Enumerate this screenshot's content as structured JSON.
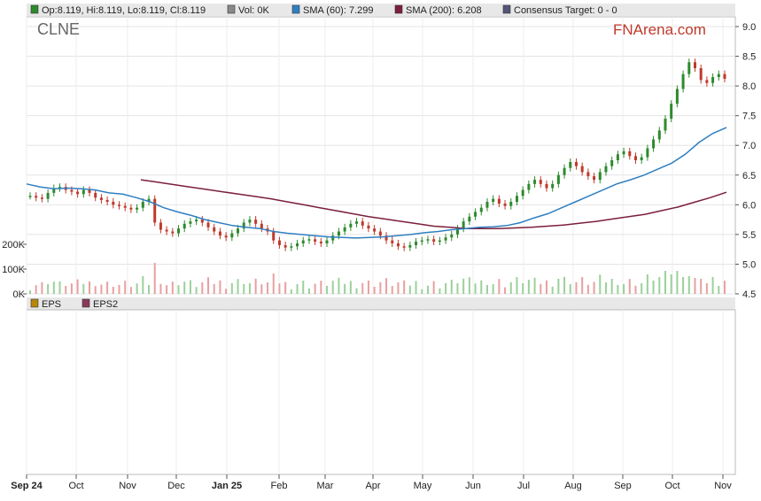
{
  "legend_top": {
    "ohlc": {
      "label": "Op:8.119, Hi:8.119, Lo:8.119, Cl:8.119",
      "color": "#2d8a2d"
    },
    "vol": {
      "label": "Vol: 0K",
      "color": "#888888"
    },
    "sma60": {
      "label": "SMA (60): 7.299",
      "color": "#2f7fc1"
    },
    "sma200": {
      "label": "SMA (200): 6.208",
      "color": "#7b1f3a"
    },
    "consensus": {
      "label": "Consensus Target: 0 - 0",
      "color": "#555577"
    }
  },
  "legend_bottom": {
    "eps": {
      "label": "EPS",
      "color": "#b8860b"
    },
    "eps2": {
      "label": "EPS2",
      "color": "#8b3a5a"
    }
  },
  "ticker": "CLNE",
  "brand": "FNArena.com",
  "chart_data": {
    "type": "line",
    "title": "CLNE",
    "y_ticks": [
      "4.5",
      "5.0",
      "5.5",
      "6.0",
      "6.5",
      "7.0",
      "7.5",
      "8.0",
      "8.5",
      "9.0"
    ],
    "ylim": [
      4.5,
      9.1
    ],
    "volume_ticks": [
      "0K",
      "100K",
      "200K"
    ],
    "x_ticks": [
      "Sep 24",
      "Oct",
      "Nov",
      "Dec",
      "Jan 25",
      "Feb",
      "Mar",
      "Apr",
      "May",
      "Jun",
      "Jul",
      "Aug",
      "Sep",
      "Oct",
      "Nov"
    ],
    "x_ticks_bold": [
      true,
      false,
      false,
      false,
      true,
      false,
      false,
      false,
      false,
      false,
      false,
      false,
      false,
      false,
      false
    ],
    "close_series": {
      "name": "CLNE",
      "color_up": "#2d8a2d",
      "color_down": "#c0392b",
      "values": [
        6.15,
        6.12,
        6.1,
        6.2,
        6.28,
        6.3,
        6.25,
        6.22,
        6.18,
        6.25,
        6.2,
        6.12,
        6.08,
        6.05,
        6.0,
        5.98,
        5.95,
        5.92,
        5.95,
        6.05,
        6.1,
        5.7,
        5.58,
        5.55,
        5.52,
        5.6,
        5.68,
        5.72,
        5.75,
        5.7,
        5.62,
        5.55,
        5.48,
        5.45,
        5.52,
        5.6,
        5.7,
        5.75,
        5.68,
        5.6,
        5.55,
        5.4,
        5.32,
        5.28,
        5.3,
        5.35,
        5.4,
        5.42,
        5.38,
        5.35,
        5.4,
        5.48,
        5.55,
        5.62,
        5.68,
        5.72,
        5.65,
        5.6,
        5.55,
        5.48,
        5.4,
        5.35,
        5.3,
        5.28,
        5.32,
        5.38,
        5.4,
        5.42,
        5.38,
        5.4,
        5.45,
        5.5,
        5.6,
        5.72,
        5.8,
        5.88,
        5.95,
        6.05,
        6.1,
        6.02,
        5.98,
        6.05,
        6.15,
        6.25,
        6.35,
        6.42,
        6.35,
        6.28,
        6.35,
        6.5,
        6.62,
        6.72,
        6.65,
        6.55,
        6.48,
        6.42,
        6.55,
        6.65,
        6.75,
        6.85,
        6.9,
        6.82,
        6.75,
        6.8,
        6.95,
        7.1,
        7.25,
        7.45,
        7.7,
        7.95,
        8.2,
        8.4,
        8.3,
        8.1,
        8.05,
        8.15,
        8.2,
        8.12
      ]
    },
    "sma60": {
      "name": "SMA (60)",
      "values": [
        6.35,
        6.3,
        6.27,
        6.28,
        6.27,
        6.25,
        6.2,
        6.18,
        6.12,
        6.05,
        5.95,
        5.88,
        5.82,
        5.75,
        5.7,
        5.65,
        5.62,
        5.6,
        5.55,
        5.52,
        5.5,
        5.48,
        5.46,
        5.45,
        5.44,
        5.45,
        5.46,
        5.48,
        5.5,
        5.53,
        5.55,
        5.58,
        5.6,
        5.62,
        5.63,
        5.65,
        5.7,
        5.78,
        5.85,
        5.95,
        6.05,
        6.15,
        6.25,
        6.35,
        6.42,
        6.5,
        6.6,
        6.7,
        6.85,
        7.05,
        7.2,
        7.3
      ]
    },
    "sma200": {
      "name": "SMA (200)",
      "values": [
        6.42,
        6.38,
        6.34,
        6.3,
        6.26,
        6.22,
        6.18,
        6.14,
        6.1,
        6.05,
        6.0,
        5.95,
        5.9,
        5.85,
        5.8,
        5.76,
        5.72,
        5.68,
        5.64,
        5.62,
        5.6,
        5.6,
        5.6,
        5.61,
        5.62,
        5.64,
        5.66,
        5.69,
        5.72,
        5.76,
        5.8,
        5.84,
        5.9,
        5.96,
        6.04,
        6.12,
        6.21
      ]
    }
  }
}
